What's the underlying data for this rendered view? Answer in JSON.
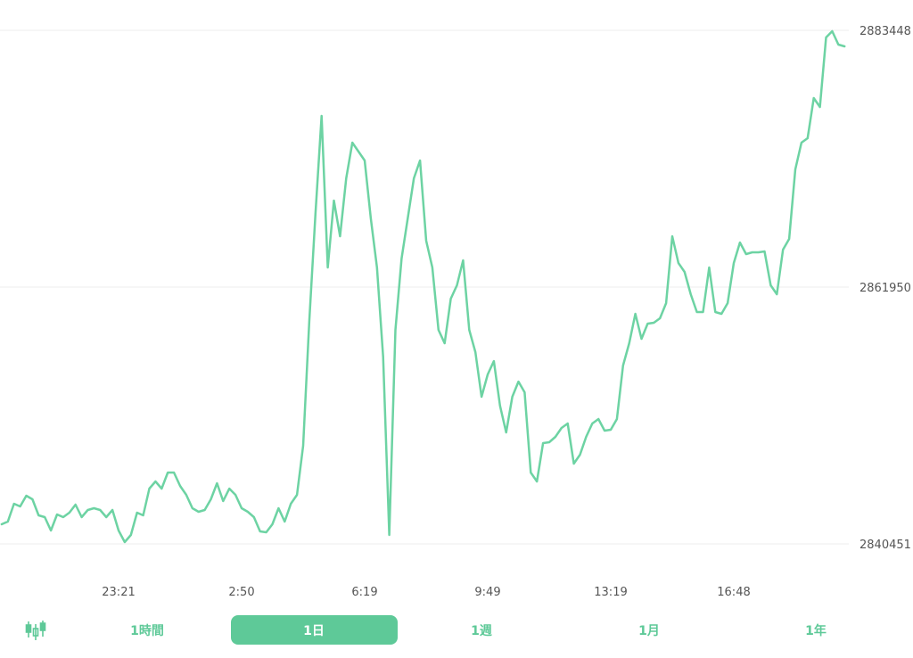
{
  "chart_data": {
    "type": "line",
    "color": "#6dd3a3",
    "grid": true,
    "ylim": [
      2840451,
      2883448
    ],
    "yticks": [
      2840451,
      2861950,
      2883448
    ],
    "categories": [
      null,
      null,
      null,
      null,
      null,
      null,
      null,
      null,
      null,
      null,
      null,
      null,
      null,
      null,
      null,
      null,
      null,
      null,
      null,
      "23:21",
      null,
      null,
      null,
      null,
      null,
      null,
      null,
      null,
      null,
      null,
      null,
      null,
      null,
      null,
      null,
      null,
      null,
      null,
      null,
      "2:50",
      null,
      null,
      null,
      null,
      null,
      null,
      null,
      null,
      null,
      null,
      null,
      null,
      null,
      null,
      null,
      null,
      null,
      null,
      null,
      "6:19",
      null,
      null,
      null,
      null,
      null,
      null,
      null,
      null,
      null,
      null,
      null,
      null,
      null,
      null,
      null,
      null,
      null,
      null,
      null,
      "9:49",
      null,
      null,
      null,
      null,
      null,
      null,
      null,
      null,
      null,
      null,
      null,
      null,
      null,
      null,
      null,
      null,
      null,
      null,
      null,
      "13:19",
      null,
      null,
      null,
      null,
      null,
      null,
      null,
      null,
      null,
      null,
      null,
      null,
      null,
      null,
      null,
      null,
      null,
      null,
      null,
      "16:48",
      null,
      null,
      null,
      null,
      null,
      null,
      null,
      null,
      null,
      null,
      null,
      null,
      null,
      null,
      null,
      null,
      null,
      null
    ],
    "values": [
      2842093,
      2842317,
      2843810,
      2843586,
      2844482,
      2844184,
      2842840,
      2842691,
      2841571,
      2842914,
      2842691,
      2843064,
      2843736,
      2842691,
      2843288,
      2843437,
      2843288,
      2842691,
      2843288,
      2841571,
      2840600,
      2841198,
      2843064,
      2842840,
      2845079,
      2845677,
      2845079,
      2846423,
      2846423,
      2845303,
      2844557,
      2843437,
      2843138,
      2843288,
      2844184,
      2845527,
      2844034,
      2845079,
      2844557,
      2843437,
      2843138,
      2842691,
      2841496,
      2841421,
      2842093,
      2843437,
      2842317,
      2843810,
      2844557,
      2848663,
      2859114,
      2868072,
      2876283,
      2863593,
      2869191,
      2866205,
      2871058,
      2874044,
      2873297,
      2872551,
      2867698,
      2863593,
      2856128,
      2841198,
      2858367,
      2864339,
      2867698,
      2871058,
      2872551,
      2865832,
      2863593,
      2858367,
      2857247,
      2860980,
      2862100,
      2864190,
      2858367,
      2856501,
      2852768,
      2854635,
      2855754,
      2852022,
      2849782,
      2852768,
      2854037,
      2853142,
      2846423,
      2845677,
      2848886,
      2848961,
      2849409,
      2850156,
      2850529,
      2847170,
      2847916,
      2849409,
      2850529,
      2850902,
      2849932,
      2850006,
      2850902,
      2855381,
      2857247,
      2859711,
      2857621,
      2858890,
      2858964,
      2859337,
      2860607,
      2866205,
      2863966,
      2863219,
      2861353,
      2859860,
      2859860,
      2863593,
      2859860,
      2859711,
      2860607,
      2863966,
      2865683,
      2864712,
      2864862,
      2864862,
      2864936,
      2862100,
      2861353,
      2865086,
      2865981,
      2871804,
      2874044,
      2874417,
      2877776,
      2877030,
      2882852,
      2883375,
      2882255,
      2882106
    ]
  },
  "tabs": {
    "items": [
      "1時間",
      "1日",
      "1週",
      "1月",
      "1年"
    ],
    "selected": 1
  }
}
